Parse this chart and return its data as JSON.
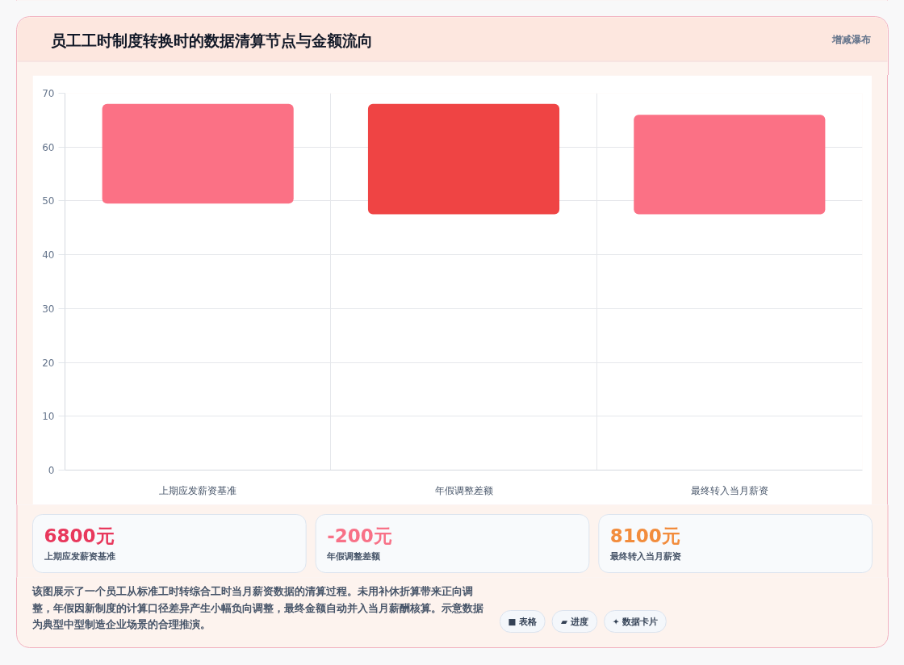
{
  "chart_data": {
    "type": "bar",
    "title": "员工工时制度转换时的数据清算节点与金额流向",
    "categories": [
      "上期应发薪资基准",
      "年假调整差额",
      "最终转入当月薪资"
    ],
    "values": [
      18.5,
      20.5,
      18.5
    ],
    "base": [
      49.5,
      47.5,
      47.5
    ],
    "colors": [
      "#fb7185",
      "#ef4444",
      "#fb7185"
    ],
    "ylim": [
      0,
      70
    ],
    "yticks": [
      0,
      10,
      20,
      30,
      40,
      50,
      60,
      70
    ],
    "grid": true,
    "annotations": [
      "增减瀑布",
      "6800元",
      "上期应发薪资基准",
      "-200元",
      "年假调整差额",
      "8100元",
      "最终转入当月薪资",
      "该图展示了一个员工从标准工时转综合工时当月薪资数据的清算过程。未用补休折算带来正向调整，年假因新制度的计算口径差异产生小幅负向调整，最终金额自动并入当月薪酬核算。示意数据为典型中型制造企业场景的合理推演。",
      "■ 表格",
      "▰ 进度",
      "✦ 数据卡片"
    ]
  }
}
